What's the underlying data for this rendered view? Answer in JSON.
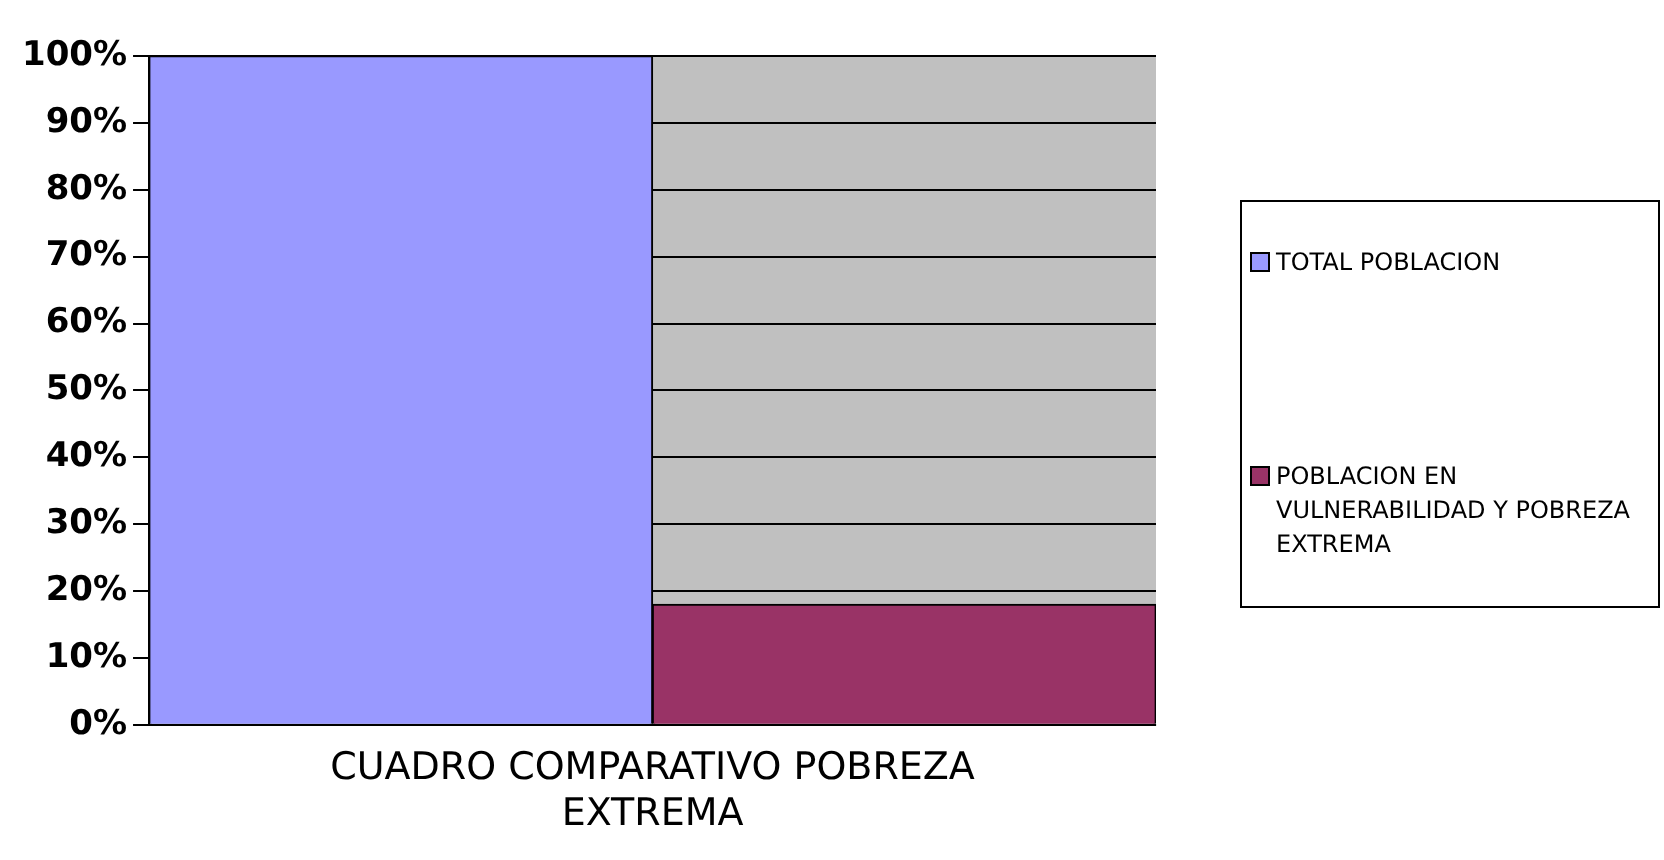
{
  "chart_data": {
    "type": "bar",
    "categories": [
      "CUADRO COMPARATIVO POBREZA EXTREMA"
    ],
    "series": [
      {
        "name": "TOTAL POBLACION",
        "color": "#9999ff",
        "values": [
          100
        ]
      },
      {
        "name": "POBLACION EN VULNERABILIDAD Y POBREZA EXTREMA",
        "color": "#993366",
        "values": [
          18
        ]
      }
    ],
    "ylim": [
      0,
      100
    ],
    "yticks": [
      {
        "value": 0,
        "label": "0%"
      },
      {
        "value": 10,
        "label": "10%"
      },
      {
        "value": 20,
        "label": "20%"
      },
      {
        "value": 30,
        "label": "30%"
      },
      {
        "value": 40,
        "label": "40%"
      },
      {
        "value": 50,
        "label": "50%"
      },
      {
        "value": 60,
        "label": "60%"
      },
      {
        "value": 70,
        "label": "70%"
      },
      {
        "value": 80,
        "label": "80%"
      },
      {
        "value": 90,
        "label": "90%"
      },
      {
        "value": 100,
        "label": "100%"
      }
    ],
    "grid": "y",
    "legend": "right"
  }
}
